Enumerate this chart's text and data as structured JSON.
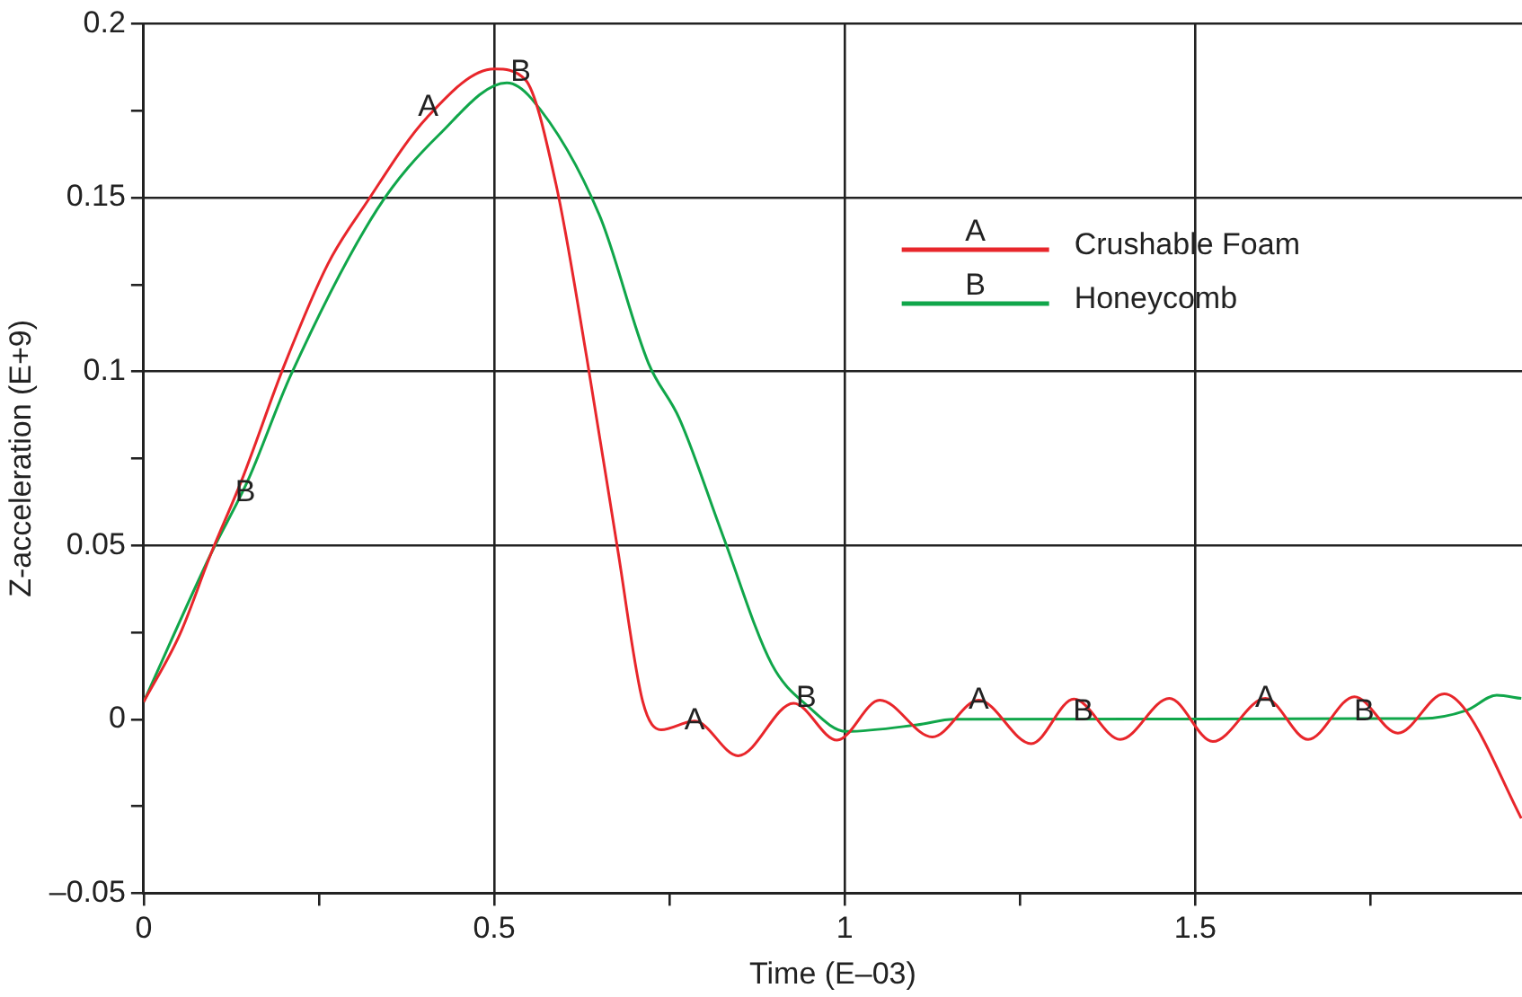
{
  "chart_data": {
    "type": "line",
    "xlabel": "Time (E–03)",
    "ylabel": "Z-acceleration (E+9)",
    "xlim": [
      0,
      1.966
    ],
    "xticks": [
      0,
      {
        "value": 0.25,
        "label": null
      },
      0.5,
      {
        "value": 0.75,
        "label": null
      },
      1,
      {
        "value": 1.25,
        "label": null
      },
      1.5,
      {
        "value": 1.75,
        "label": null
      }
    ],
    "ylim": [
      -0.05,
      0.2
    ],
    "yticks": [
      {
        "value": -0.05,
        "label": "–0.05"
      },
      {
        "value": -0.025,
        "label": null
      },
      0,
      {
        "value": 0.025,
        "label": null
      },
      0.05,
      {
        "value": 0.075,
        "label": null
      },
      0.1,
      {
        "value": 0.125,
        "label": null
      },
      0.15,
      {
        "value": 0.175,
        "label": null
      },
      0.2
    ],
    "grid": true,
    "legend": "top right",
    "marker": "none",
    "line_style": "solid",
    "series": [
      {
        "name": "Crushable Foam",
        "color": "#e8262b",
        "x": [
          0,
          0.052,
          0.096,
          0.14,
          0.201,
          0.263,
          0.316,
          0.404,
          0.5,
          0.544,
          0.588,
          0.632,
          0.676,
          0.712,
          0.738,
          0.786,
          0.848,
          0.927,
          0.989,
          1.05,
          1.125,
          1.191,
          1.266,
          1.327,
          1.393,
          1.463,
          1.525,
          1.6,
          1.661,
          1.727,
          1.789,
          1.855,
          1.886,
          1.965
        ],
        "values": [
          0.005,
          0.0246,
          0.0476,
          0.0688,
          0.102,
          0.131,
          0.148,
          0.173,
          0.187,
          0.184,
          0.154,
          0.104,
          0.049,
          0.005,
          -0.003,
          -0.0005,
          -0.0105,
          0.0046,
          -0.006,
          0.0055,
          -0.0051,
          0.0055,
          -0.007,
          0.0058,
          -0.0058,
          0.006,
          -0.0064,
          0.006,
          -0.0058,
          0.0065,
          -0.004,
          0.0073,
          0.0025,
          -0.0285
        ]
      },
      {
        "name": "Honeycomb",
        "color": "#10a64a",
        "x": [
          0,
          0.096,
          0.149,
          0.21,
          0.333,
          0.421,
          0.518,
          0.553,
          0.65,
          0.72,
          0.764,
          0.826,
          0.896,
          0.949,
          1.002,
          1.103,
          1.156,
          1.823,
          1.886,
          1.93,
          1.965
        ],
        "values": [
          0.005,
          0.0476,
          0.0688,
          0.099,
          0.1466,
          0.168,
          0.183,
          0.1785,
          0.145,
          0.1024,
          0.0865,
          0.0529,
          0.0158,
          0.0035,
          -0.0035,
          -0.0016,
          0,
          0.0002,
          0.0025,
          0.0069,
          0.006
        ]
      }
    ],
    "annotations": [
      "A",
      "B",
      {
        "text": "A",
        "x": 0.406,
        "y": 0.176
      },
      {
        "text": "B",
        "x": 0.538,
        "y": 0.186
      },
      {
        "text": "B",
        "x": 0.145,
        "y": 0.065
      },
      {
        "text": "A",
        "x": 0.786,
        "y": -0.0005
      },
      {
        "text": "B",
        "x": 0.945,
        "y": 0.006
      },
      {
        "text": "A",
        "x": 1.191,
        "y": 0.0055
      },
      {
        "text": "B",
        "x": 1.34,
        "y": 0.002
      },
      {
        "text": "A",
        "x": 1.6,
        "y": 0.006
      },
      {
        "text": "B",
        "x": 1.741,
        "y": 0.002
      }
    ]
  }
}
